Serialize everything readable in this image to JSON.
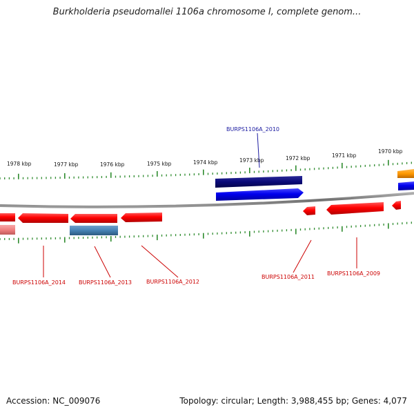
{
  "title": "Burkholderia pseudomallei 1106a chromosome I, complete genom...",
  "footer": {
    "accession": "Accession: NC_009076",
    "summary": "Topology: circular; Length: 3,988,455 bp; Genes: 4,077"
  },
  "scale_labels": [
    "1978 kbp",
    "1977 kbp",
    "1976 kbp",
    "1975 kbp",
    "1974 kbp",
    "1973 kbp",
    "1972 kbp",
    "1971 kbp",
    "1970 kbp"
  ],
  "gene_labels": [
    {
      "id": "BURPS1106A_2010",
      "color": "#1a1aa0"
    },
    {
      "id": "BURPS1106A_2014",
      "color": "#cc0000"
    },
    {
      "id": "BURPS1106A_2013",
      "color": "#cc0000"
    },
    {
      "id": "BURPS1106A_2012",
      "color": "#cc0000"
    },
    {
      "id": "BURPS1106A_2011",
      "color": "#cc0000"
    },
    {
      "id": "BURPS1106A_2009",
      "color": "#cc0000"
    }
  ],
  "colors": {
    "tick": "#2e8b2e",
    "backbone": "#808080",
    "gene_red": "#ff0000",
    "gene_blue": "#0000ee",
    "gene_navy": "#0a0a78",
    "gene_steel": "#4682b4",
    "gene_orange": "#ff9900",
    "gene_pink": "#f08080"
  }
}
